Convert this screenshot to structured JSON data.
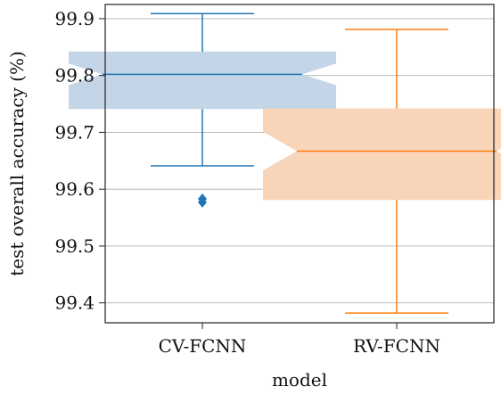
{
  "chart_data": {
    "type": "box",
    "xlabel": "model",
    "ylabel": "test overall accuracy (%)",
    "ylim": [
      99.365,
      99.925
    ],
    "yticks": [
      "99.4",
      "99.5",
      "99.6",
      "99.7",
      "99.8",
      "99.9"
    ],
    "grid": "horizontal",
    "notched": true,
    "categories": [
      "CV-FCNN",
      "RV-FCNN"
    ],
    "series": [
      {
        "name": "CV-FCNN",
        "color": "#1f77b4",
        "fill": "#c3d5e6",
        "whisker_low": 99.641,
        "q1": 99.741,
        "notch_low": 99.783,
        "median": 99.802,
        "notch_high": 99.821,
        "q3": 99.842,
        "whisker_high": 99.909,
        "outliers": [
          99.583,
          99.577
        ]
      },
      {
        "name": "RV-FCNN",
        "color": "#ff7f0e",
        "fill": "#f8d4b9",
        "whisker_low": 99.382,
        "q1": 99.581,
        "notch_low": 99.633,
        "median": 99.667,
        "notch_high": 99.701,
        "q3": 99.742,
        "whisker_high": 99.881,
        "outliers": []
      }
    ]
  }
}
